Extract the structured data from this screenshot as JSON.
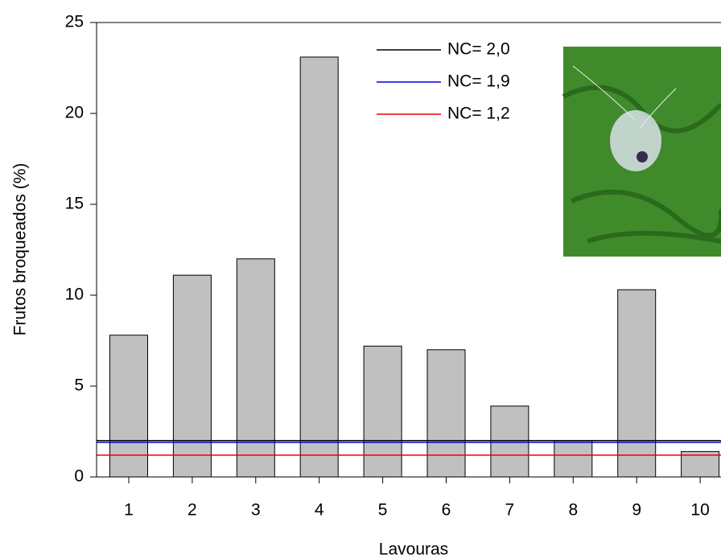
{
  "chart_data": {
    "type": "bar",
    "x_label": "Lavouras",
    "y_label": "Frutos broqueados (%)",
    "categories": [
      "1",
      "2",
      "3",
      "4",
      "5",
      "6",
      "7",
      "8",
      "9",
      "10"
    ],
    "values": [
      7.8,
      11.1,
      12.0,
      23.1,
      7.2,
      7.0,
      3.9,
      2.0,
      10.3,
      1.4
    ],
    "color": "#c0c0c0",
    "ylim": [
      0,
      25
    ],
    "yticks": [
      0,
      5,
      10,
      15,
      20,
      25
    ],
    "reference_lines": [
      {
        "name": "NC= 2,0",
        "value": 2.0,
        "color": "#000000"
      },
      {
        "name": "NC= 1,9",
        "value": 1.9,
        "color": "#0000cc"
      },
      {
        "name": "NC= 1,2",
        "value": 1.2,
        "color": "#ee0000"
      }
    ],
    "legend": "upper-center"
  }
}
